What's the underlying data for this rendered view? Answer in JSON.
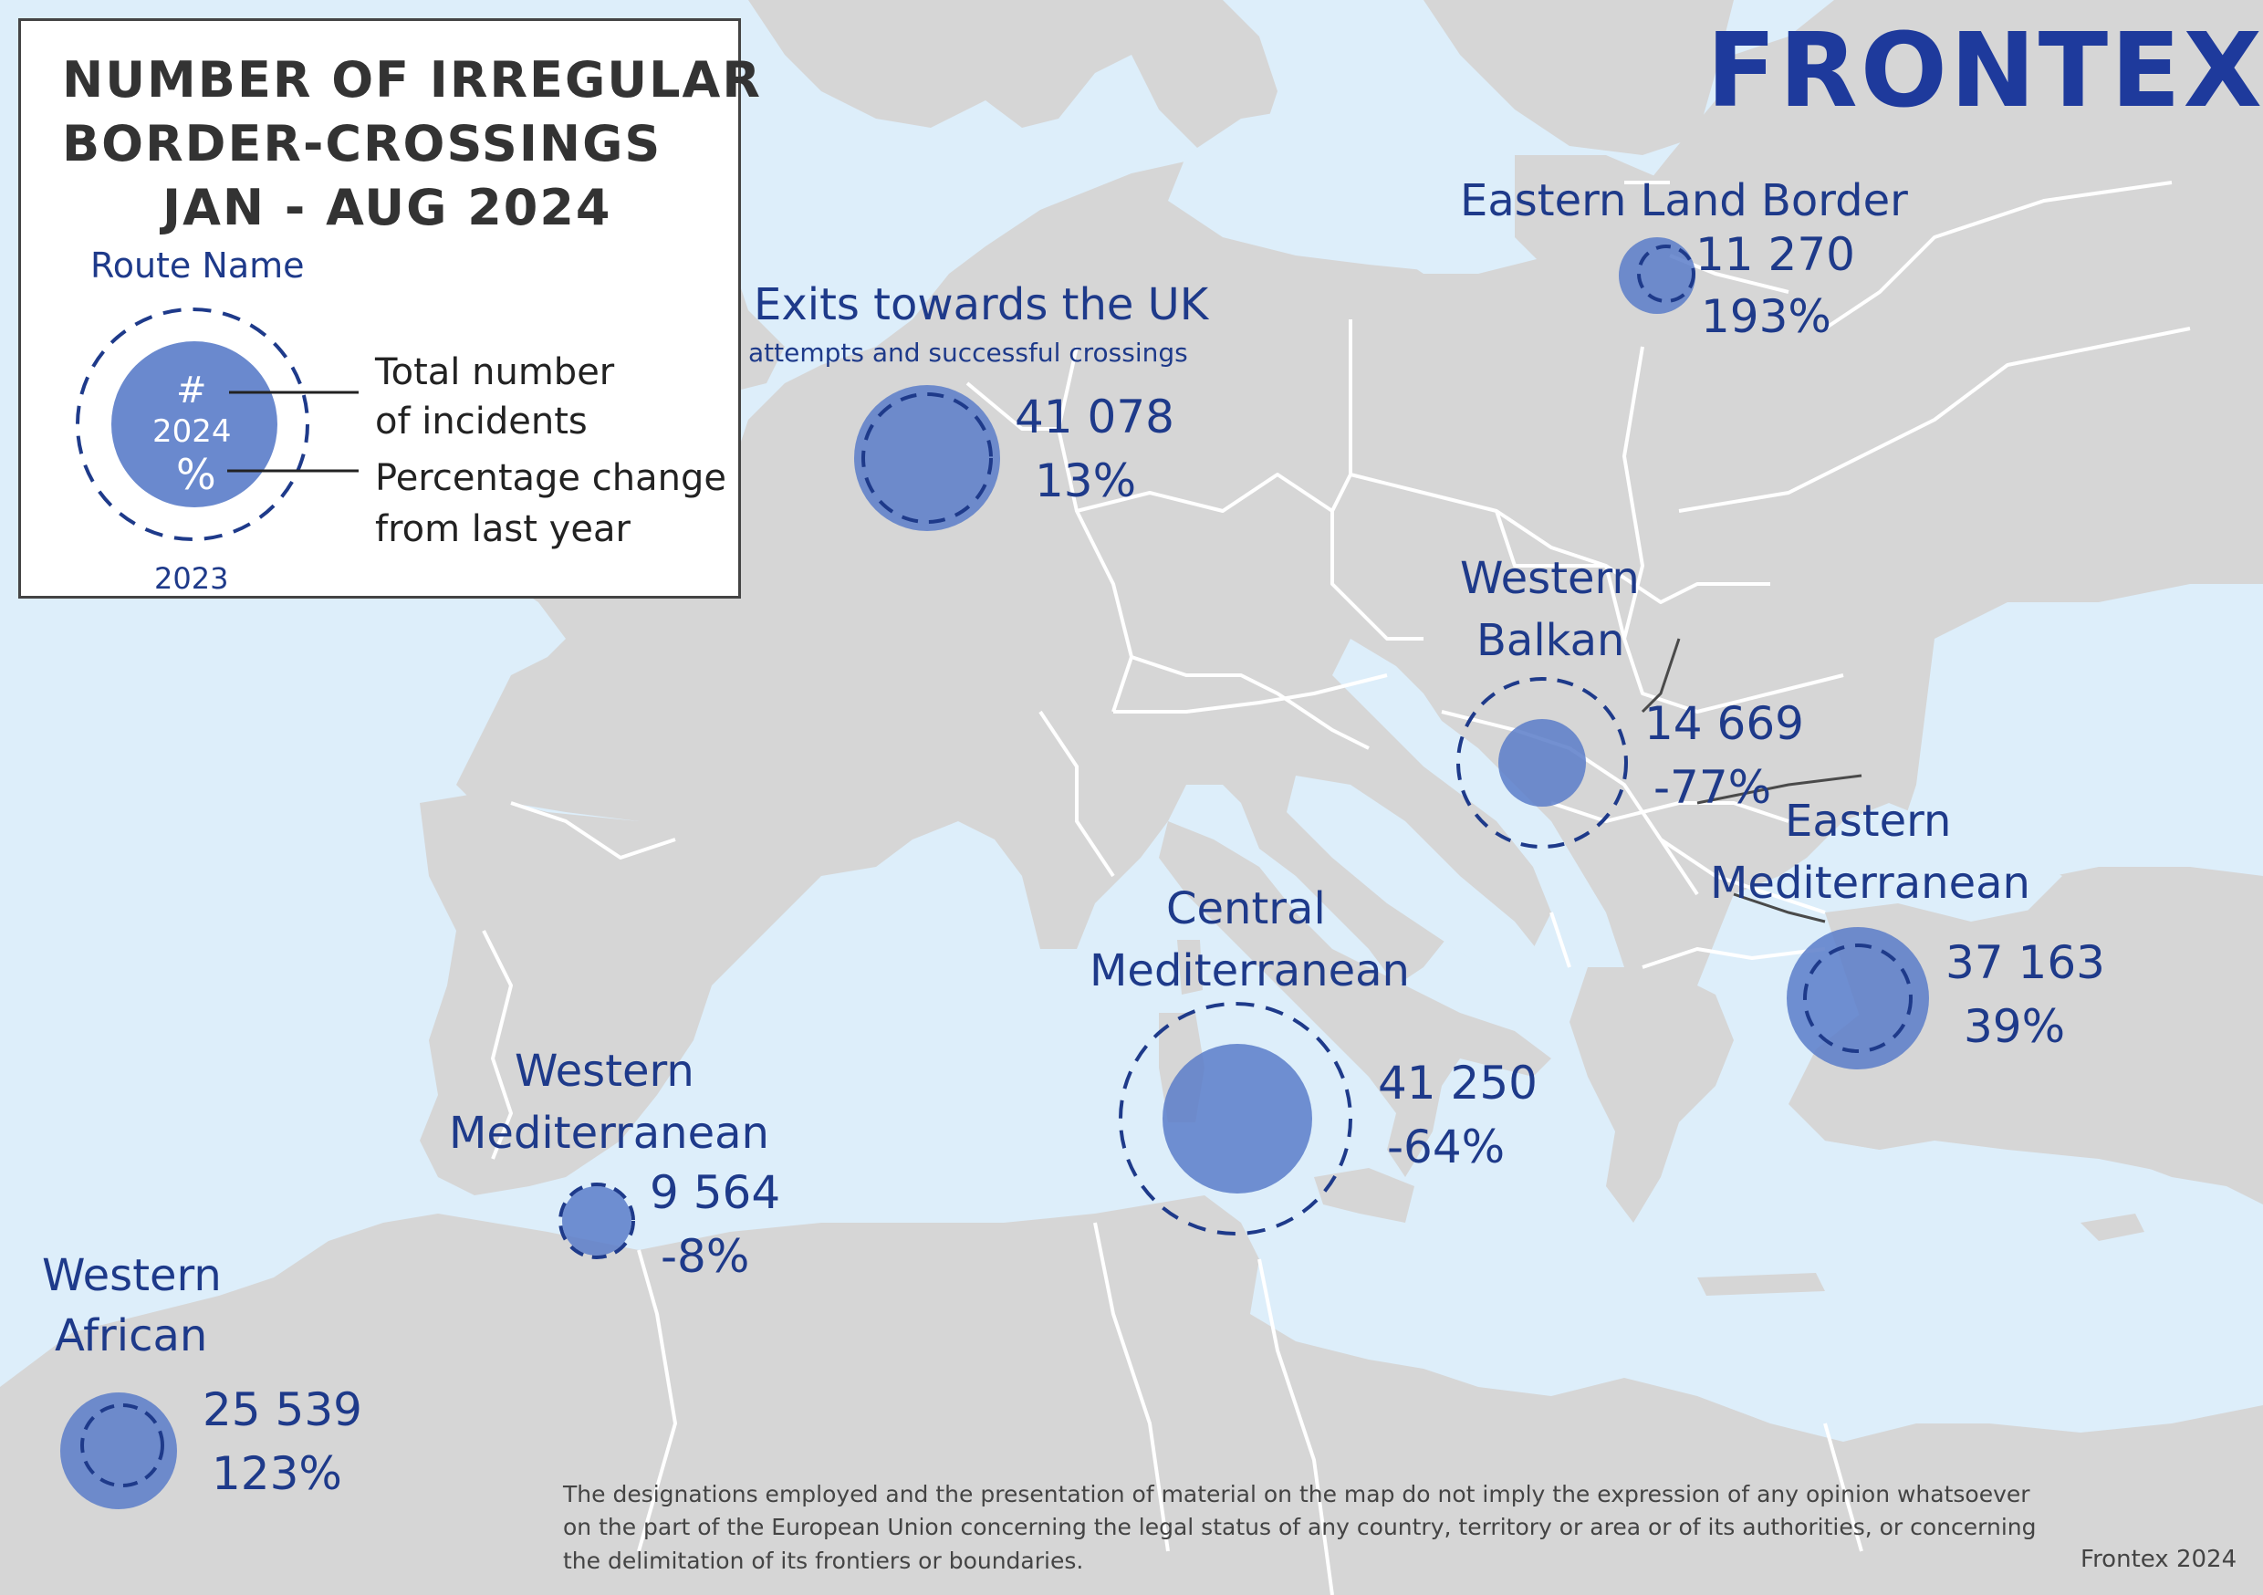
{
  "legend": {
    "title_line1": "NUMBER OF IRREGULAR",
    "title_line2": "BORDER-CROSSINGS",
    "title_line3": "JAN - AUG 2024",
    "route_name": "Route Name",
    "hash": "#",
    "year_current": "2024",
    "percent": "%",
    "year_previous": "2023",
    "total_line1": "Total number",
    "total_line2": "of incidents",
    "pct_line1": "Percentage change",
    "pct_line2": "from last year"
  },
  "logo": "FRONTEX",
  "colors": {
    "sea": "#ddeefa",
    "land": "#d6d6d6",
    "border": "#ffffff",
    "bubble": "#5a7cc9",
    "text_blue": "#1e3a8a"
  },
  "routes": [
    {
      "id": "eastern-land-border",
      "name_lines": [
        "Eastern Land Border"
      ],
      "count": "11 270",
      "change": "193%"
    },
    {
      "id": "uk-exits",
      "name_lines": [
        "Exits towards the UK"
      ],
      "subtitle": "attempts and successful crossings",
      "count": "41 078",
      "change": "13%"
    },
    {
      "id": "western-balkan",
      "name_lines": [
        "Western",
        "Balkan"
      ],
      "count": "14 669",
      "change": "-77%"
    },
    {
      "id": "eastern-mediterranean",
      "name_lines": [
        "Eastern",
        "Mediterranean"
      ],
      "count": "37 163",
      "change": "39%"
    },
    {
      "id": "central-mediterranean",
      "name_lines": [
        "Central",
        "Mediterranean"
      ],
      "count": "41 250",
      "change": "-64%"
    },
    {
      "id": "western-mediterranean",
      "name_lines": [
        "Western",
        "Mediterranean"
      ],
      "count": "9 564",
      "change": "-8%"
    },
    {
      "id": "western-african",
      "name_lines": [
        "Western",
        "African"
      ],
      "count": "25 539",
      "change": "123%"
    }
  ],
  "disclaimer": "The designations employed and the presentation of material on the map do not imply the expression of any opinion whatsoever on the part of the European Union concerning the legal status of any country, territory or area or of its authorities, or concerning the delimitation of its frontiers or boundaries.",
  "credit": "Frontex 2024"
}
